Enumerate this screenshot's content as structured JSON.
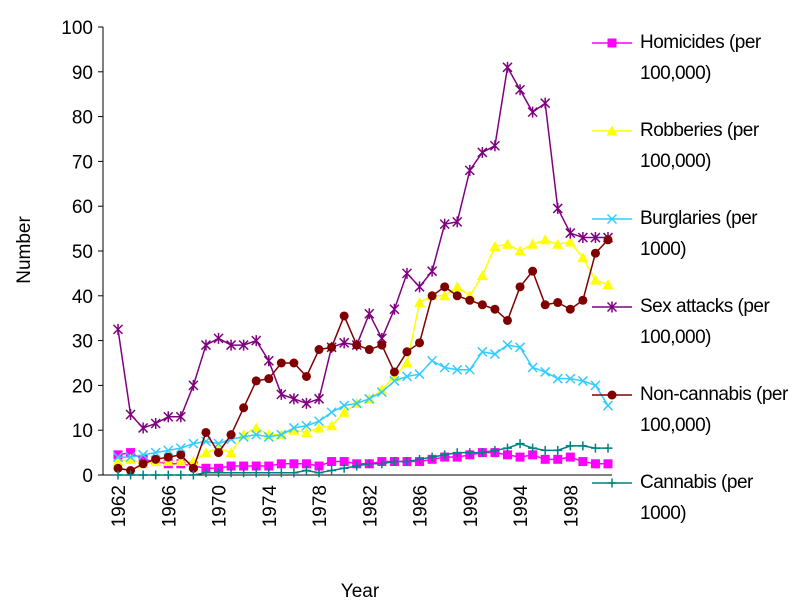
{
  "chart_data": {
    "type": "line",
    "x_label": "Year",
    "y_label": "Number",
    "categories": [
      "1962",
      null,
      null,
      null,
      "1966",
      null,
      null,
      null,
      "1970",
      null,
      null,
      null,
      "1974",
      null,
      null,
      null,
      "1978",
      null,
      null,
      null,
      "1982",
      null,
      null,
      null,
      "1986",
      null,
      null,
      null,
      "1990",
      null,
      null,
      null,
      "1994",
      null,
      null,
      null,
      "1998",
      null,
      null,
      null
    ],
    "ylim": [
      0,
      100
    ],
    "yticks": [
      0,
      10,
      20,
      30,
      40,
      50,
      60,
      70,
      80,
      90,
      100
    ],
    "grid": false,
    "legend": "right",
    "series": [
      {
        "name": "Homicides (per 100,000)",
        "color": "#ff00ff",
        "marker": "square",
        "values": [
          4.5,
          5,
          3.5,
          3,
          2.5,
          2.5,
          2,
          1.5,
          1.5,
          2,
          2,
          2,
          2,
          2.5,
          2.5,
          2.5,
          2,
          3,
          3,
          2.5,
          2.5,
          3,
          3,
          3,
          3,
          3.5,
          4,
          4,
          4.5,
          5,
          5,
          4.5,
          4,
          4.5,
          3.5,
          3.5,
          4,
          3,
          2.5,
          2.5
        ]
      },
      {
        "name": "Robberies (per 100,000)",
        "color": "#ffff00",
        "marker": "triangle",
        "values": [
          3,
          3.5,
          2.5,
          3,
          3,
          3,
          3,
          5,
          6,
          5,
          9,
          10.5,
          9,
          9,
          10,
          9.5,
          10.5,
          11,
          14,
          16,
          17,
          19,
          22,
          25,
          38.5,
          40,
          40,
          42,
          40,
          44.5,
          51,
          51.5,
          50,
          51.5,
          52.5,
          51.5,
          52,
          48.5,
          43.5,
          42.5
        ]
      },
      {
        "name": "Burglaries (per 1000)",
        "color": "#33ccff",
        "marker": "x",
        "values": [
          4,
          4,
          4.5,
          5,
          5.5,
          6,
          7,
          7.5,
          7,
          8,
          8.5,
          9,
          8.5,
          9,
          10.5,
          11,
          12,
          14,
          15.5,
          16,
          17,
          18.5,
          21,
          22,
          22.5,
          25.5,
          24,
          23.5,
          23.5,
          27.5,
          27,
          29,
          28.5,
          24,
          23,
          21.5,
          21.5,
          21,
          20,
          15.5
        ]
      },
      {
        "name": "Sex attacks (per 100,000)",
        "color": "#800080",
        "marker": "star",
        "values": [
          32.5,
          13.5,
          10.5,
          11.5,
          13,
          13,
          20,
          29,
          30.5,
          29,
          29,
          30,
          25.5,
          18,
          17,
          16,
          17,
          28.5,
          29.5,
          29,
          36,
          30.5,
          37,
          45,
          42,
          45.5,
          56,
          56.5,
          68,
          72,
          73.5,
          91,
          86,
          81,
          83,
          59.5,
          54,
          53,
          53,
          53
        ]
      },
      {
        "name": "Non-cannabis (per 100,000)",
        "color": "#800000",
        "marker": "circle",
        "values": [
          1.5,
          1,
          2.5,
          3.5,
          4,
          4.5,
          1.5,
          9.5,
          5,
          9,
          15,
          21,
          21.5,
          25,
          25,
          22,
          28,
          28.5,
          35.5,
          29,
          28,
          29,
          23,
          27.5,
          29.5,
          40,
          42,
          40,
          39,
          38,
          37,
          34.5,
          42,
          45.5,
          38,
          38.5,
          37,
          39,
          49.5,
          52.5
        ]
      },
      {
        "name": "Cannabis (per 1000)",
        "color": "#008080",
        "marker": "plus",
        "values": [
          0,
          0,
          0,
          0,
          0,
          0,
          0,
          0.5,
          0.5,
          0.5,
          0.5,
          0.5,
          0.5,
          0.5,
          0.5,
          1,
          0.5,
          1,
          1.5,
          2,
          2.5,
          2.5,
          3,
          3,
          3.5,
          4,
          4.5,
          5,
          5,
          5,
          5.5,
          6,
          7,
          6,
          5.5,
          5.5,
          6.5,
          6.5,
          6,
          6
        ]
      }
    ]
  }
}
